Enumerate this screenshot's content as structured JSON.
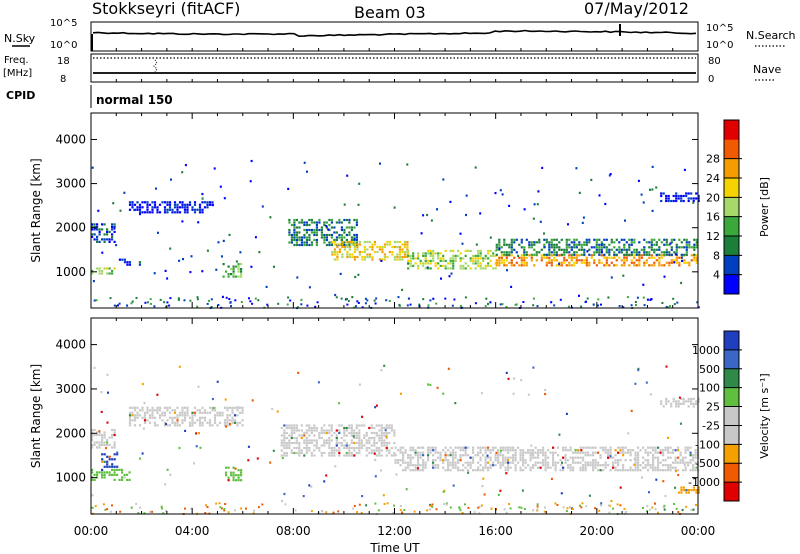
{
  "header": {
    "station": "Stokkseyri (fitACF)",
    "beam": "Beam 03",
    "date": "07/May/2012"
  },
  "strip_panels": {
    "nsky_label": "N.Sky",
    "nsky_ticks": [
      "10^5",
      "10^0"
    ],
    "nsearch_label": "N.Search",
    "nsearch_ticks": [
      "10^5",
      "10^0"
    ],
    "freq_label_1": "Freq.",
    "freq_label_2": "[MHz]",
    "freq_ticks": [
      "18",
      "8"
    ],
    "nave_label": "Nave",
    "nave_ticks": [
      "80",
      "0"
    ],
    "cpid_label": "CPID",
    "cpid_value": "normal 150"
  },
  "chart_data": [
    {
      "type": "heatmap",
      "name": "power",
      "ylabel": "Slant Range [km]",
      "yticks": [
        "1000",
        "2000",
        "3000",
        "4000"
      ],
      "ylim": [
        180,
        4600
      ],
      "xlim_hours": [
        0,
        24
      ],
      "colorbar_label": "Power [dB]",
      "colorbar_ticks": [
        "4",
        "8",
        "12",
        "16",
        "20",
        "24",
        "28"
      ],
      "colorbar_colors": [
        "#0000ff",
        "#0040c0",
        "#1b7f3a",
        "#3aa83a",
        "#a6d96a",
        "#f5d300",
        "#f59d00",
        "#f05a00",
        "#e00000"
      ],
      "echo_bands": [
        {
          "t0": 0.0,
          "t1": 0.9,
          "r0": 950,
          "r1": 1100,
          "level": 4
        },
        {
          "t0": 0.0,
          "t1": 0.9,
          "r0": 1700,
          "r1": 2100,
          "level": 1
        },
        {
          "t0": 1.0,
          "t1": 1.9,
          "r0": 1150,
          "r1": 1300,
          "level": 1
        },
        {
          "t0": 1.5,
          "t1": 4.8,
          "r0": 2350,
          "r1": 2600,
          "level": 0
        },
        {
          "t0": 5.2,
          "t1": 5.9,
          "r0": 900,
          "r1": 1200,
          "level": 3
        },
        {
          "t0": 7.8,
          "t1": 10.5,
          "r0": 1600,
          "r1": 2200,
          "level": 2
        },
        {
          "t0": 9.5,
          "t1": 12.5,
          "r0": 1300,
          "r1": 1700,
          "level": 5
        },
        {
          "t0": 12.5,
          "t1": 16.0,
          "r0": 1100,
          "r1": 1500,
          "level": 4
        },
        {
          "t0": 16.0,
          "t1": 24.0,
          "r0": 1150,
          "r1": 1400,
          "level": 6
        },
        {
          "t0": 16.0,
          "t1": 24.0,
          "r0": 1400,
          "r1": 1750,
          "level": 2
        },
        {
          "t0": 22.5,
          "t1": 24.0,
          "r0": 2600,
          "r1": 2800,
          "level": 0
        }
      ]
    },
    {
      "type": "heatmap",
      "name": "velocity",
      "ylabel": "Slant Range [km]",
      "yticks": [
        "1000",
        "2000",
        "3000",
        "4000"
      ],
      "ylim": [
        180,
        4600
      ],
      "xlim_hours": [
        0,
        24
      ],
      "colorbar_label": "Velocity [m s⁻¹]",
      "colorbar_ticks": [
        "1000",
        "500",
        "100",
        "25",
        "-25",
        "-100",
        "-500",
        "-1000"
      ],
      "colorbar_colors": [
        "#1f3fbf",
        "#3a66c8",
        "#2f8a4a",
        "#5fbf3f",
        "#c8c8c8",
        "#c8c8c8",
        "#f5a000",
        "#f05a00",
        "#e00000"
      ],
      "echo_bands": [
        {
          "t0": 0.0,
          "t1": 1.5,
          "r0": 950,
          "r1": 1200,
          "level": 3
        },
        {
          "t0": 0.4,
          "t1": 1.0,
          "r0": 1250,
          "r1": 1550,
          "level": 0
        },
        {
          "t0": 0.0,
          "t1": 0.9,
          "r0": 1700,
          "r1": 2100,
          "level": 4
        },
        {
          "t0": 1.5,
          "t1": 6.0,
          "r0": 2200,
          "r1": 2600,
          "level": 4
        },
        {
          "t0": 5.3,
          "t1": 5.9,
          "r0": 950,
          "r1": 1250,
          "level": 3
        },
        {
          "t0": 7.5,
          "t1": 12.0,
          "r0": 1500,
          "r1": 2200,
          "level": 4
        },
        {
          "t0": 12.0,
          "t1": 24.0,
          "r0": 1150,
          "r1": 1700,
          "level": 4
        },
        {
          "t0": 22.5,
          "t1": 24.0,
          "r0": 2600,
          "r1": 2800,
          "level": 4
        },
        {
          "t0": 23.2,
          "t1": 24.0,
          "r0": 650,
          "r1": 800,
          "level": 6
        }
      ]
    }
  ],
  "xaxis": {
    "ticks": [
      "00:00",
      "04:00",
      "08:00",
      "12:00",
      "16:00",
      "20:00",
      "00:00"
    ],
    "label": "Time UT"
  }
}
